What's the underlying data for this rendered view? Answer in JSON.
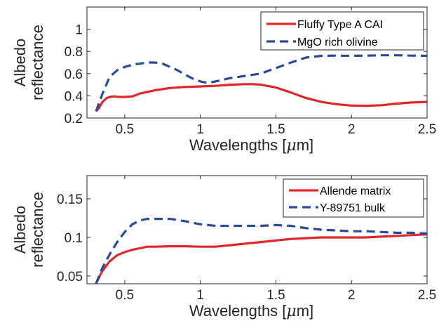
{
  "chart_data": [
    {
      "type": "line",
      "title": "",
      "xlabel": "Wavelengths [μm]",
      "xlabel_parts": {
        "prefix": "Wavelengths [",
        "mu": "μ",
        "suffix": "m]"
      },
      "ylabel": [
        "Albedo",
        "reflectance"
      ],
      "xlim": [
        0.25,
        2.5
      ],
      "ylim": [
        0.2,
        1.2
      ],
      "xticks": [
        0.5,
        1,
        1.5,
        2,
        2.5
      ],
      "xtick_labels": [
        "0.5",
        "1",
        "1.5",
        "2",
        "2.5"
      ],
      "yticks": [
        0.2,
        0.4,
        0.6,
        0.8,
        1
      ],
      "ytick_labels": [
        "0.2",
        "0.4",
        "0.6",
        "0.8",
        "1"
      ],
      "legend_position": "top-right",
      "grid": false,
      "series": [
        {
          "name": "Fluffy Type A CAI",
          "color": "#e3262a",
          "style": "solid",
          "x": [
            0.31,
            0.33,
            0.35,
            0.38,
            0.4,
            0.43,
            0.46,
            0.5,
            0.55,
            0.6,
            0.7,
            0.8,
            0.9,
            1.0,
            1.1,
            1.2,
            1.3,
            1.35,
            1.4,
            1.5,
            1.6,
            1.7,
            1.8,
            1.9,
            2.0,
            2.1,
            2.2,
            2.3,
            2.4,
            2.5
          ],
          "y": [
            0.26,
            0.29,
            0.34,
            0.38,
            0.39,
            0.395,
            0.39,
            0.39,
            0.395,
            0.42,
            0.45,
            0.47,
            0.48,
            0.485,
            0.49,
            0.5,
            0.505,
            0.505,
            0.5,
            0.475,
            0.43,
            0.38,
            0.345,
            0.325,
            0.312,
            0.31,
            0.315,
            0.33,
            0.34,
            0.345
          ]
        },
        {
          "name": "MgO rich olivine",
          "color": "#2a4a9e",
          "style": "dashed",
          "x": [
            0.31,
            0.35,
            0.4,
            0.45,
            0.5,
            0.55,
            0.6,
            0.65,
            0.7,
            0.75,
            0.8,
            0.85,
            0.9,
            0.95,
            1.0,
            1.05,
            1.1,
            1.2,
            1.3,
            1.4,
            1.5,
            1.6,
            1.7,
            1.8,
            1.9,
            2.0,
            2.1,
            2.2,
            2.3,
            2.4,
            2.5
          ],
          "y": [
            0.26,
            0.41,
            0.57,
            0.63,
            0.66,
            0.68,
            0.69,
            0.7,
            0.7,
            0.69,
            0.66,
            0.63,
            0.59,
            0.555,
            0.53,
            0.515,
            0.53,
            0.56,
            0.58,
            0.6,
            0.65,
            0.7,
            0.745,
            0.76,
            0.762,
            0.76,
            0.762,
            0.765,
            0.765,
            0.762,
            0.76
          ]
        }
      ]
    },
    {
      "type": "line",
      "title": "",
      "xlabel": "Wavelengths [μm]",
      "xlabel_parts": {
        "prefix": "Wavelengths [",
        "mu": "μ",
        "suffix": "m]"
      },
      "ylabel": [
        "Albedo",
        "reflectance"
      ],
      "xlim": [
        0.25,
        2.5
      ],
      "ylim": [
        0.04,
        0.18
      ],
      "xticks": [
        0.5,
        1,
        1.5,
        2,
        2.5
      ],
      "xtick_labels": [
        "0.5",
        "1",
        "1.5",
        "2",
        "2.5"
      ],
      "yticks": [
        0.05,
        0.1,
        0.15
      ],
      "ytick_labels": [
        "0.05",
        "0.1",
        "0.15"
      ],
      "legend_position": "top-right",
      "grid": false,
      "series": [
        {
          "name": "Allende matrix",
          "color": "#e3262a",
          "style": "solid",
          "x": [
            0.31,
            0.35,
            0.4,
            0.45,
            0.5,
            0.55,
            0.6,
            0.65,
            0.7,
            0.8,
            0.9,
            1.0,
            1.1,
            1.2,
            1.3,
            1.4,
            1.5,
            1.6,
            1.7,
            1.8,
            1.9,
            2.0,
            2.1,
            2.2,
            2.3,
            2.4,
            2.5
          ],
          "y": [
            0.04,
            0.056,
            0.069,
            0.077,
            0.081,
            0.084,
            0.086,
            0.088,
            0.088,
            0.0885,
            0.0885,
            0.088,
            0.088,
            0.09,
            0.092,
            0.094,
            0.096,
            0.098,
            0.099,
            0.1,
            0.1,
            0.1,
            0.1,
            0.101,
            0.102,
            0.103,
            0.104
          ]
        },
        {
          "name": "Y-89751 bulk",
          "color": "#2a4a9e",
          "style": "dashed",
          "x": [
            0.31,
            0.35,
            0.4,
            0.45,
            0.5,
            0.55,
            0.6,
            0.65,
            0.7,
            0.8,
            0.9,
            1.0,
            1.1,
            1.2,
            1.3,
            1.4,
            1.5,
            1.6,
            1.7,
            1.8,
            1.9,
            2.0,
            2.1,
            2.2,
            2.3,
            2.4,
            2.5
          ],
          "y": [
            0.04,
            0.06,
            0.078,
            0.094,
            0.107,
            0.117,
            0.122,
            0.124,
            0.124,
            0.124,
            0.121,
            0.117,
            0.115,
            0.115,
            0.115,
            0.115,
            0.116,
            0.115,
            0.112,
            0.11,
            0.109,
            0.108,
            0.108,
            0.107,
            0.106,
            0.106,
            0.105
          ]
        }
      ]
    }
  ]
}
